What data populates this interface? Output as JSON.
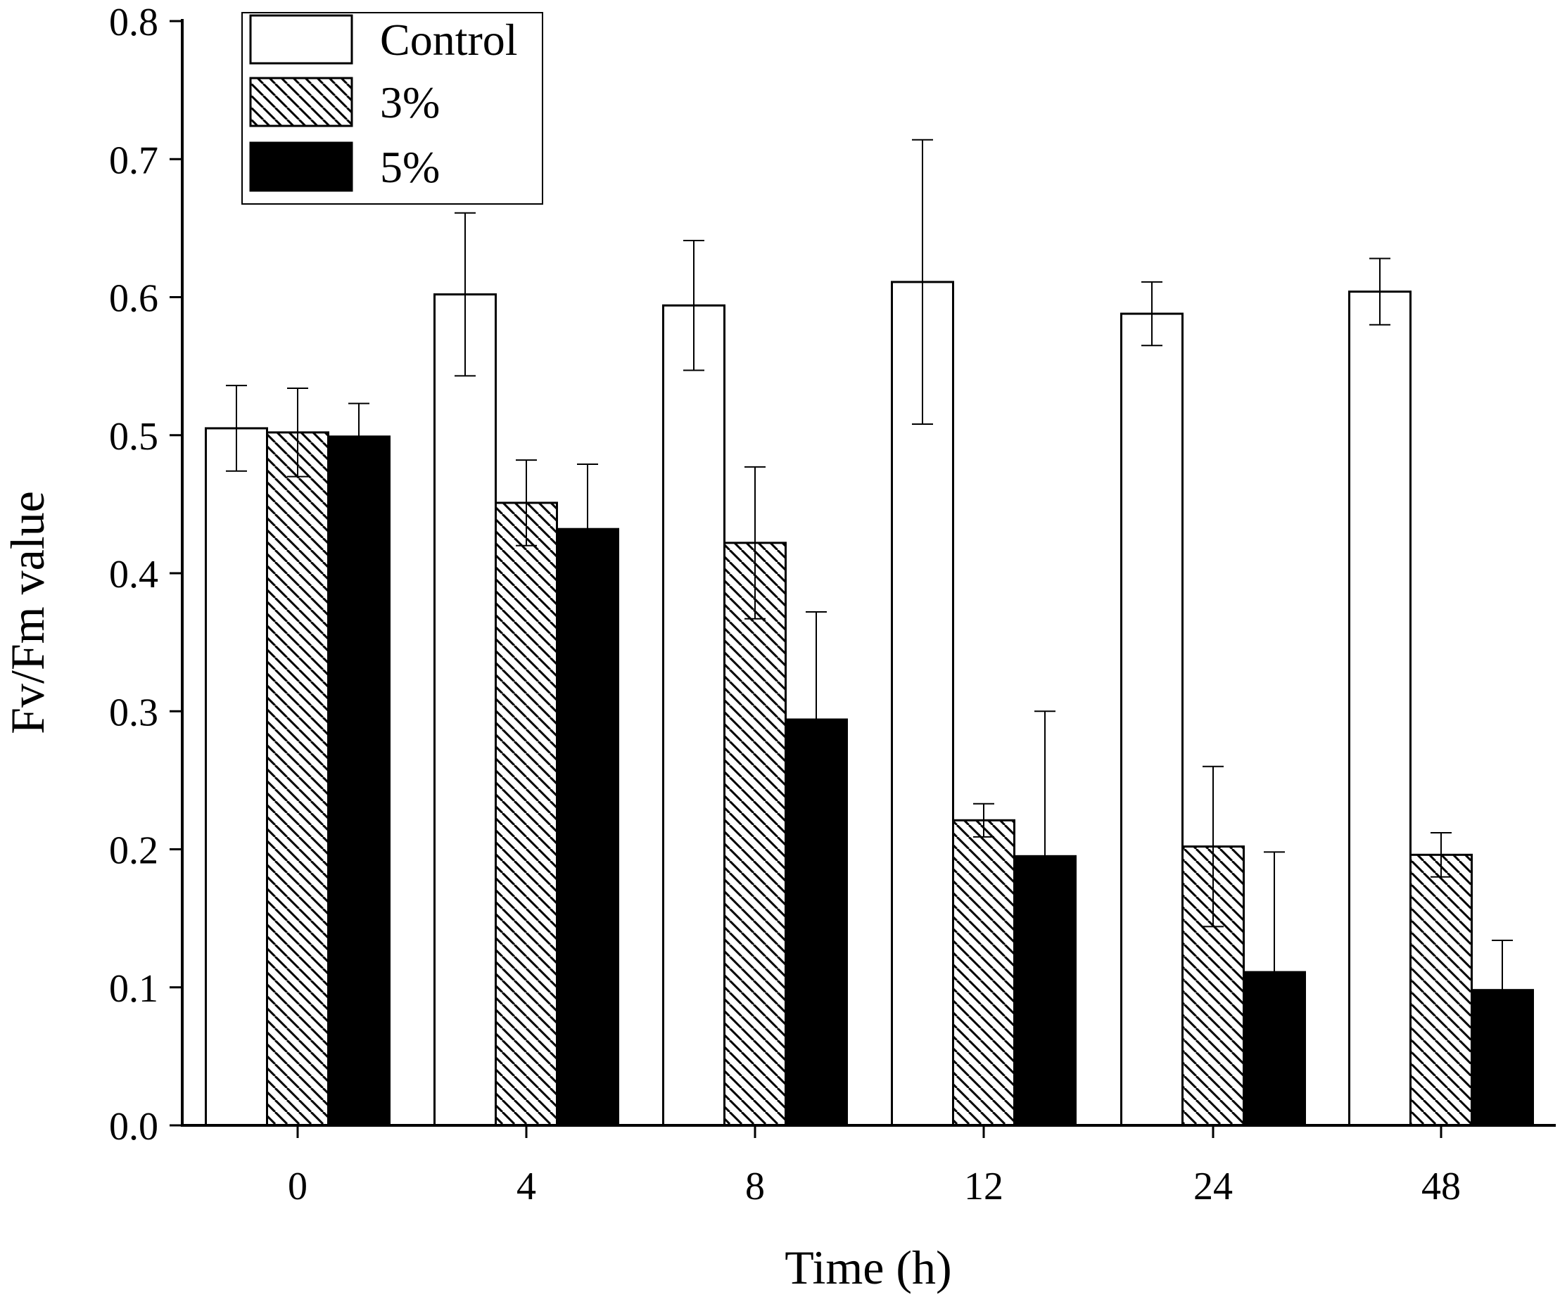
{
  "chart_data": {
    "type": "bar",
    "title": "",
    "xlabel": "Time (h)",
    "ylabel": "Fv/Fm value",
    "categories": [
      "0",
      "4",
      "8",
      "12",
      "24",
      "48"
    ],
    "ylim": [
      0.0,
      0.8
    ],
    "yticks": [
      "0.0",
      "0.1",
      "0.2",
      "0.3",
      "0.4",
      "0.5",
      "0.6",
      "0.7",
      "0.8"
    ],
    "grid": false,
    "legend_position": "top-left",
    "series": [
      {
        "name": "Control",
        "style": "open",
        "values": [
          0.505,
          0.602,
          0.594,
          0.611,
          0.588,
          0.604
        ],
        "errors": [
          0.031,
          0.059,
          0.047,
          0.103,
          0.023,
          0.024
        ]
      },
      {
        "name": "3%",
        "style": "hatched",
        "values": [
          0.502,
          0.451,
          0.422,
          0.221,
          0.202,
          0.196
        ],
        "errors": [
          0.032,
          0.031,
          0.055,
          0.012,
          0.058,
          0.016
        ]
      },
      {
        "name": "5%",
        "style": "solid",
        "values": [
          0.499,
          0.432,
          0.294,
          0.195,
          0.111,
          0.098
        ],
        "errors": [
          0.024,
          0.047,
          0.078,
          0.105,
          0.087,
          0.036
        ]
      }
    ],
    "colors": {
      "axis": "#000000",
      "open_fill": "#ffffff",
      "solid_fill": "#000000",
      "hatch": "#000000"
    }
  }
}
